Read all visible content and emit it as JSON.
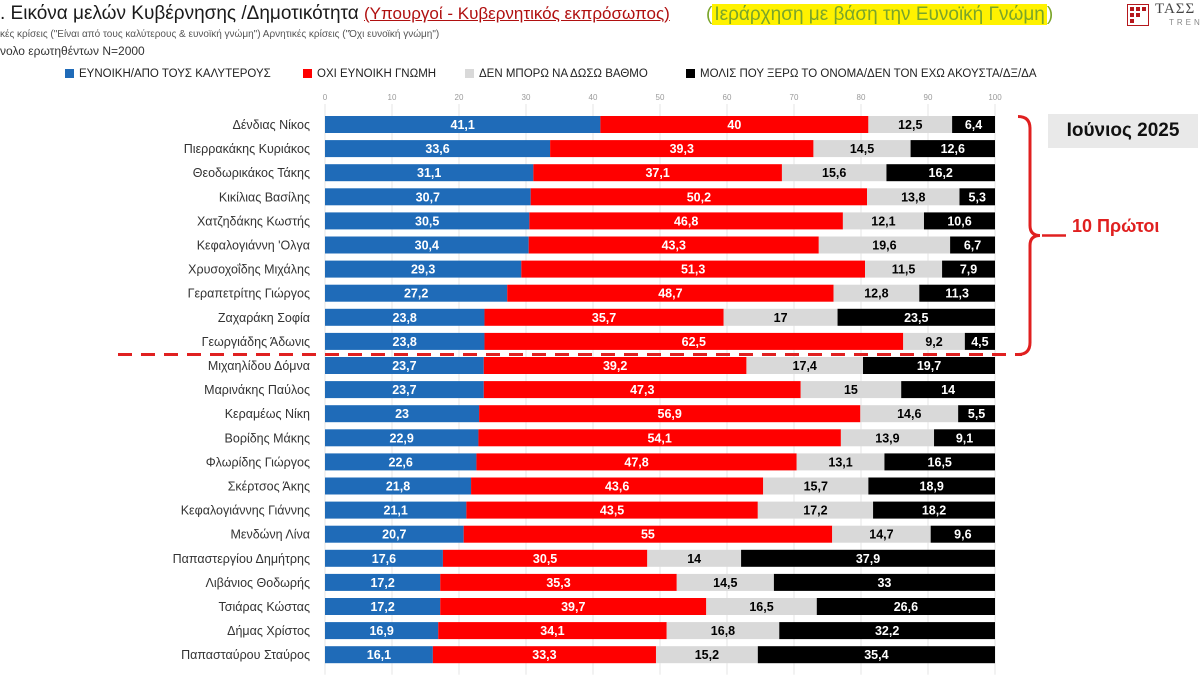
{
  "header": {
    "title_main": ". Εικόνα μελών Κυβέρνησης /Δημοτικότητα",
    "title_sub": "(Υπουργοί - Κυβερνητικός εκπρόσωπος)",
    "highlight_open": "(",
    "highlight_text": "Ιεράρχηση με βάση την Ευνοϊκή Γνώμη",
    "highlight_close": ")",
    "subtitle1": "κές κρίσεις (\"Είναι από τους καλύτερους & ευνοϊκή γνώμη\")  Αρνητικές κρίσεις (\"Όχι ευνοϊκή γνώμη\")",
    "subtitle2": "νολο ερωτηθέντων N=2000"
  },
  "logo": {
    "line1": "ΤΑΣΣ",
    "line2": "TREN"
  },
  "annotations": {
    "period": "Ιούνιος 2025",
    "top10": "10 Πρώτοι"
  },
  "colors": {
    "favorable": "#1f6bb8",
    "unfavorable": "#ff0000",
    "cannot_rate": "#d9d9d9",
    "unknown": "#000000",
    "bracket": "#e02020"
  },
  "chart_data": {
    "type": "bar",
    "orientation": "horizontal",
    "stacked": true,
    "xlim": [
      0,
      100
    ],
    "xticks": [
      "0",
      "10",
      "20",
      "30",
      "40",
      "50",
      "60",
      "70",
      "80",
      "90",
      "100"
    ],
    "grid": true,
    "legend_position": "top",
    "categories": [
      "Δένδιας Νίκος",
      "Πιερρακάκης Κυριάκος",
      "Θεοδωρικάκος Τάκης",
      "Κικίλιας Βασίλης",
      "Χατζηδάκης Κωστής",
      "Κεφαλογιάννη 'Ολγα",
      "Χρυσοχοΐδης Μιχάλης",
      "Γεραπετρίτης Γιώργος",
      "Ζαχαράκη Σοφία",
      "Γεωργιάδης Άδωνις",
      "Μιχαηλίδου Δόμνα",
      "Μαρινάκης Παύλος",
      "Κεραμέως Νίκη",
      "Βορίδης Μάκης",
      "Φλωρίδης Γιώργος",
      "Σκέρτσος Άκης",
      "Κεφαλογιάννης Γιάννης",
      "Μενδώνη Λίνα",
      "Παπαστεργίου Δημήτρης",
      "Λιβάνιος Θοδωρής",
      "Τσιάρας Κώστας",
      "Δήμας Χρίστος",
      "Παπασταύρου Σταύρος"
    ],
    "series": [
      {
        "name": "ΕΥΝΟΙΚΗ/ΑΠΟ ΤΟΥΣ ΚΑΛΥΤΕΡΟΥΣ",
        "values": [
          "41,1",
          "33,6",
          "31,1",
          "30,7",
          "30,5",
          "30,4",
          "29,3",
          "27,2",
          "23,8",
          "23,8",
          "23,7",
          "23,7",
          "23",
          "22,9",
          "22,6",
          "21,8",
          "21,1",
          "20,7",
          "17,6",
          "17,2",
          "17,2",
          "16,9",
          "16,1"
        ]
      },
      {
        "name": "ΟΧΙ ΕΥΝΟΙΚΗ ΓΝΩΜΗ",
        "values": [
          "40",
          "39,3",
          "37,1",
          "50,2",
          "46,8",
          "43,3",
          "51,3",
          "48,7",
          "35,7",
          "62,5",
          "39,2",
          "47,3",
          "56,9",
          "54,1",
          "47,8",
          "43,6",
          "43,5",
          "55",
          "30,5",
          "35,3",
          "39,7",
          "34,1",
          "33,3"
        ]
      },
      {
        "name": "ΔΕΝ ΜΠΟΡΩ ΝΑ ΔΩΣΩ ΒΑΘΜΟ",
        "values": [
          "12,5",
          "14,5",
          "15,6",
          "13,8",
          "12,1",
          "19,6",
          "11,5",
          "12,8",
          "17",
          "9,2",
          "17,4",
          "15",
          "14,6",
          "13,9",
          "13,1",
          "15,7",
          "17,2",
          "14,7",
          "14",
          "14,5",
          "16,5",
          "16,8",
          "15,2"
        ]
      },
      {
        "name": "ΜΟΛΙΣ ΠΟΥ ΞΕΡΩ ΤΟ ΟΝΟΜΑ/ΔΕΝ ΤΟΝ ΕΧΩ ΑΚΟΥΣΤΑ/ΔΞ/ΔΑ",
        "values": [
          "6,4",
          "12,6",
          "16,2",
          "5,3",
          "10,6",
          "6,7",
          "7,9",
          "11,3",
          "23,5",
          "4,5",
          "19,7",
          "14",
          "5,5",
          "9,1",
          "16,5",
          "18,9",
          "18,2",
          "9,6",
          "37,9",
          "33",
          "26,6",
          "32,2",
          "35,4"
        ]
      }
    ],
    "top_group_size": 10
  }
}
